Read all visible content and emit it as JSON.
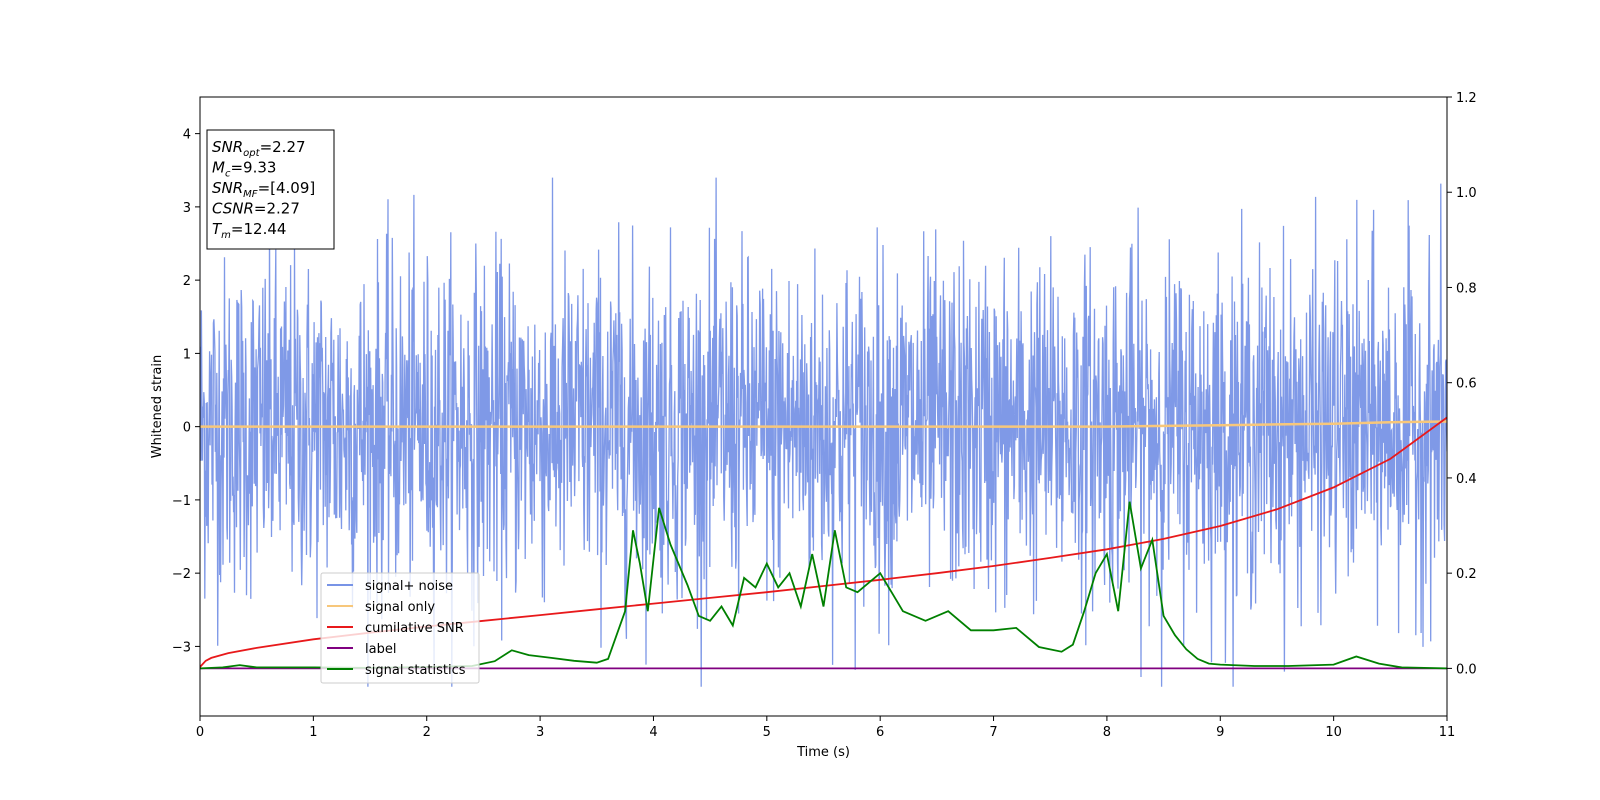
{
  "chart_data": {
    "type": "line",
    "xlabel": "Time (s)",
    "ylabel": "Whitened strain",
    "xlim": [
      0,
      11
    ],
    "ylim": [
      -3.95,
      4.5
    ],
    "ylim_right": [
      -0.1,
      1.2
    ],
    "xticks": [
      "0",
      "1",
      "2",
      "3",
      "4",
      "5",
      "6",
      "7",
      "8",
      "9",
      "10",
      "11"
    ],
    "yticks": [
      "−3",
      "−2",
      "−1",
      "0",
      "1",
      "2",
      "3",
      "4"
    ],
    "yticks_right": [
      "0.0",
      "0.2",
      "0.4",
      "0.6",
      "0.8",
      "1.0",
      "1.2"
    ],
    "legend_position": "lower-left",
    "grid": false,
    "annotation": {
      "lines": [
        {
          "main": "SNR",
          "sub": "opt",
          "value": "=2.27"
        },
        {
          "main": "M",
          "sub": "c",
          "value": "=9.33"
        },
        {
          "main": "SNR",
          "sub": "MF",
          "value": "=[4.09]"
        },
        {
          "main": "CSNR",
          "sub": "",
          "value": "=2.27"
        },
        {
          "main": "T",
          "sub": "m",
          "value": "=12.44"
        }
      ]
    },
    "series": [
      {
        "name": "signal+ noise",
        "color": "#7894e6",
        "axis": "left",
        "description_values": {
          "type": "noise",
          "center": 0,
          "typical_amplitude": 1.2,
          "max": 3.4,
          "min": -3.55
        }
      },
      {
        "name": "signal only",
        "color": "#f7c77b",
        "axis": "left",
        "x": [
          0,
          2,
          4,
          6,
          8,
          9,
          9.5,
          10,
          10.5,
          11
        ],
        "y": [
          0,
          0,
          0,
          0,
          0,
          0.02,
          0.03,
          0.04,
          0.06,
          0.07
        ]
      },
      {
        "name": "cumilative SNR",
        "color": "#e8191b",
        "axis": "right",
        "x": [
          0,
          0.05,
          0.1,
          0.25,
          0.5,
          1,
          1.5,
          2,
          2.5,
          3,
          3.5,
          4,
          4.5,
          5,
          5.5,
          6,
          6.5,
          7,
          7.5,
          8,
          8.5,
          9,
          9.5,
          10,
          10.5,
          11
        ],
        "y": [
          0.003,
          0.016,
          0.022,
          0.032,
          0.043,
          0.061,
          0.075,
          0.088,
          0.1,
          0.112,
          0.124,
          0.136,
          0.148,
          0.16,
          0.173,
          0.186,
          0.2,
          0.215,
          0.232,
          0.25,
          0.272,
          0.299,
          0.334,
          0.38,
          0.44,
          0.527
        ]
      },
      {
        "name": "label",
        "color": "#800080",
        "axis": "right",
        "x": [
          0,
          11
        ],
        "y": [
          0,
          0
        ]
      },
      {
        "name": "signal statistics",
        "color": "#008000",
        "axis": "right",
        "x": [
          0,
          0.2,
          0.35,
          0.5,
          1,
          1.5,
          2,
          2.4,
          2.6,
          2.75,
          2.9,
          3.1,
          3.3,
          3.5,
          3.6,
          3.75,
          3.82,
          3.88,
          3.95,
          4.05,
          4.15,
          4.3,
          4.4,
          4.5,
          4.6,
          4.7,
          4.8,
          4.9,
          5.0,
          5.1,
          5.2,
          5.3,
          5.4,
          5.5,
          5.6,
          5.7,
          5.8,
          6.0,
          6.2,
          6.4,
          6.6,
          6.8,
          7.0,
          7.2,
          7.4,
          7.6,
          7.7,
          7.8,
          7.9,
          8.0,
          8.1,
          8.2,
          8.3,
          8.4,
          8.5,
          8.6,
          8.7,
          8.8,
          8.9,
          9.0,
          9.3,
          9.6,
          10.0,
          10.2,
          10.4,
          10.6,
          11
        ],
        "y": [
          0.0,
          0.002,
          0.007,
          0.002,
          0.002,
          0.001,
          0.003,
          0.005,
          0.015,
          0.038,
          0.028,
          0.022,
          0.016,
          0.012,
          0.02,
          0.12,
          0.29,
          0.22,
          0.12,
          0.337,
          0.26,
          0.175,
          0.11,
          0.1,
          0.13,
          0.09,
          0.19,
          0.17,
          0.22,
          0.17,
          0.2,
          0.13,
          0.24,
          0.13,
          0.29,
          0.17,
          0.16,
          0.2,
          0.12,
          0.1,
          0.12,
          0.08,
          0.08,
          0.085,
          0.045,
          0.035,
          0.05,
          0.12,
          0.2,
          0.24,
          0.12,
          0.35,
          0.21,
          0.27,
          0.11,
          0.07,
          0.04,
          0.02,
          0.01,
          0.008,
          0.005,
          0.005,
          0.008,
          0.025,
          0.01,
          0.002,
          0.0
        ]
      }
    ]
  }
}
